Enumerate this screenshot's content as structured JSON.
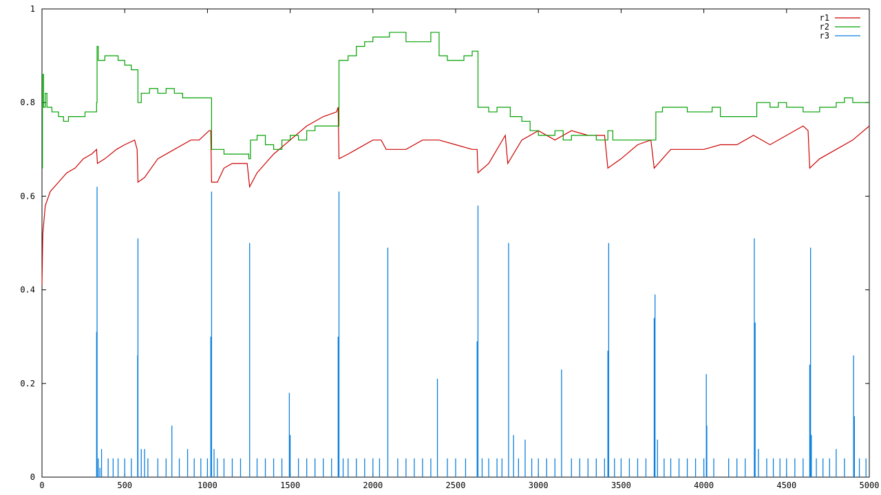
{
  "chart_data": {
    "type": "line",
    "title": "",
    "xlabel": "",
    "ylabel": "",
    "xlim": [
      0,
      5000
    ],
    "ylim": [
      0,
      1
    ],
    "x_ticks": [
      0,
      500,
      1000,
      1500,
      2000,
      2500,
      3000,
      3500,
      4000,
      4500,
      5000
    ],
    "x_tick_labels": [
      "0",
      "500",
      "1000",
      "1500",
      "2000",
      "2500",
      "3000",
      "3500",
      "4000",
      "4500",
      "5000"
    ],
    "y_ticks": [
      0,
      0.2,
      0.4,
      0.6,
      0.8,
      1
    ],
    "y_tick_labels": [
      "0",
      "0.2",
      "0.4",
      "0.6",
      "0.8",
      "1"
    ],
    "grid": false,
    "legend_position": "top-right",
    "series": [
      {
        "name": "r1",
        "color": "#cc0000",
        "style": "line",
        "points": [
          [
            0,
            0.41
          ],
          [
            5,
            0.52
          ],
          [
            20,
            0.58
          ],
          [
            50,
            0.61
          ],
          [
            100,
            0.63
          ],
          [
            150,
            0.65
          ],
          [
            200,
            0.66
          ],
          [
            250,
            0.68
          ],
          [
            300,
            0.69
          ],
          [
            330,
            0.7
          ],
          [
            335,
            0.67
          ],
          [
            380,
            0.68
          ],
          [
            450,
            0.7
          ],
          [
            500,
            0.71
          ],
          [
            560,
            0.72
          ],
          [
            575,
            0.7
          ],
          [
            580,
            0.63
          ],
          [
            620,
            0.64
          ],
          [
            700,
            0.68
          ],
          [
            800,
            0.7
          ],
          [
            900,
            0.72
          ],
          [
            950,
            0.72
          ],
          [
            1010,
            0.74
          ],
          [
            1020,
            0.74
          ],
          [
            1025,
            0.63
          ],
          [
            1060,
            0.63
          ],
          [
            1100,
            0.66
          ],
          [
            1150,
            0.67
          ],
          [
            1200,
            0.67
          ],
          [
            1240,
            0.67
          ],
          [
            1255,
            0.62
          ],
          [
            1300,
            0.65
          ],
          [
            1400,
            0.69
          ],
          [
            1500,
            0.72
          ],
          [
            1600,
            0.75
          ],
          [
            1700,
            0.77
          ],
          [
            1780,
            0.78
          ],
          [
            1790,
            0.79
          ],
          [
            1795,
            0.68
          ],
          [
            1850,
            0.69
          ],
          [
            1900,
            0.7
          ],
          [
            2000,
            0.72
          ],
          [
            2050,
            0.72
          ],
          [
            2080,
            0.7
          ],
          [
            2100,
            0.7
          ],
          [
            2200,
            0.7
          ],
          [
            2300,
            0.72
          ],
          [
            2400,
            0.72
          ],
          [
            2500,
            0.71
          ],
          [
            2600,
            0.7
          ],
          [
            2630,
            0.7
          ],
          [
            2635,
            0.65
          ],
          [
            2700,
            0.67
          ],
          [
            2750,
            0.7
          ],
          [
            2800,
            0.73
          ],
          [
            2815,
            0.67
          ],
          [
            2900,
            0.72
          ],
          [
            3000,
            0.74
          ],
          [
            3100,
            0.72
          ],
          [
            3200,
            0.74
          ],
          [
            3300,
            0.73
          ],
          [
            3400,
            0.73
          ],
          [
            3420,
            0.66
          ],
          [
            3500,
            0.68
          ],
          [
            3600,
            0.71
          ],
          [
            3680,
            0.72
          ],
          [
            3700,
            0.66
          ],
          [
            3800,
            0.7
          ],
          [
            3900,
            0.7
          ],
          [
            4000,
            0.7
          ],
          [
            4100,
            0.71
          ],
          [
            4200,
            0.71
          ],
          [
            4300,
            0.73
          ],
          [
            4400,
            0.71
          ],
          [
            4500,
            0.73
          ],
          [
            4600,
            0.75
          ],
          [
            4630,
            0.74
          ],
          [
            4640,
            0.66
          ],
          [
            4700,
            0.68
          ],
          [
            4800,
            0.7
          ],
          [
            4900,
            0.72
          ],
          [
            5000,
            0.75
          ]
        ]
      },
      {
        "name": "r2",
        "color": "#00a000",
        "style": "step",
        "points": [
          [
            0,
            0.66
          ],
          [
            3,
            0.86
          ],
          [
            10,
            0.79
          ],
          [
            20,
            0.82
          ],
          [
            30,
            0.79
          ],
          [
            60,
            0.78
          ],
          [
            100,
            0.77
          ],
          [
            130,
            0.76
          ],
          [
            160,
            0.77
          ],
          [
            200,
            0.77
          ],
          [
            260,
            0.78
          ],
          [
            330,
            0.8
          ],
          [
            333,
            0.92
          ],
          [
            340,
            0.89
          ],
          [
            380,
            0.9
          ],
          [
            420,
            0.9
          ],
          [
            460,
            0.89
          ],
          [
            500,
            0.88
          ],
          [
            540,
            0.87
          ],
          [
            575,
            0.87
          ],
          [
            580,
            0.8
          ],
          [
            600,
            0.82
          ],
          [
            650,
            0.83
          ],
          [
            700,
            0.82
          ],
          [
            750,
            0.83
          ],
          [
            800,
            0.82
          ],
          [
            850,
            0.81
          ],
          [
            900,
            0.81
          ],
          [
            1000,
            0.81
          ],
          [
            1020,
            0.81
          ],
          [
            1025,
            0.7
          ],
          [
            1050,
            0.7
          ],
          [
            1100,
            0.69
          ],
          [
            1150,
            0.69
          ],
          [
            1200,
            0.69
          ],
          [
            1250,
            0.68
          ],
          [
            1260,
            0.72
          ],
          [
            1300,
            0.73
          ],
          [
            1350,
            0.71
          ],
          [
            1400,
            0.7
          ],
          [
            1450,
            0.72
          ],
          [
            1500,
            0.73
          ],
          [
            1550,
            0.72
          ],
          [
            1600,
            0.74
          ],
          [
            1650,
            0.75
          ],
          [
            1700,
            0.75
          ],
          [
            1790,
            0.75
          ],
          [
            1795,
            0.89
          ],
          [
            1850,
            0.9
          ],
          [
            1900,
            0.92
          ],
          [
            1950,
            0.93
          ],
          [
            2000,
            0.94
          ],
          [
            2050,
            0.94
          ],
          [
            2100,
            0.95
          ],
          [
            2150,
            0.95
          ],
          [
            2200,
            0.93
          ],
          [
            2250,
            0.93
          ],
          [
            2300,
            0.93
          ],
          [
            2350,
            0.95
          ],
          [
            2400,
            0.9
          ],
          [
            2450,
            0.89
          ],
          [
            2500,
            0.89
          ],
          [
            2550,
            0.9
          ],
          [
            2600,
            0.91
          ],
          [
            2630,
            0.91
          ],
          [
            2635,
            0.79
          ],
          [
            2700,
            0.78
          ],
          [
            2750,
            0.79
          ],
          [
            2800,
            0.79
          ],
          [
            2830,
            0.77
          ],
          [
            2900,
            0.76
          ],
          [
            2950,
            0.74
          ],
          [
            3000,
            0.73
          ],
          [
            3050,
            0.73
          ],
          [
            3100,
            0.74
          ],
          [
            3150,
            0.72
          ],
          [
            3200,
            0.73
          ],
          [
            3300,
            0.73
          ],
          [
            3350,
            0.72
          ],
          [
            3420,
            0.74
          ],
          [
            3450,
            0.72
          ],
          [
            3500,
            0.72
          ],
          [
            3550,
            0.72
          ],
          [
            3600,
            0.72
          ],
          [
            3650,
            0.72
          ],
          [
            3700,
            0.72
          ],
          [
            3710,
            0.78
          ],
          [
            3750,
            0.79
          ],
          [
            3800,
            0.79
          ],
          [
            3850,
            0.79
          ],
          [
            3900,
            0.78
          ],
          [
            3950,
            0.78
          ],
          [
            4000,
            0.78
          ],
          [
            4050,
            0.79
          ],
          [
            4100,
            0.77
          ],
          [
            4200,
            0.77
          ],
          [
            4300,
            0.77
          ],
          [
            4320,
            0.8
          ],
          [
            4350,
            0.8
          ],
          [
            4400,
            0.79
          ],
          [
            4450,
            0.8
          ],
          [
            4500,
            0.79
          ],
          [
            4600,
            0.78
          ],
          [
            4650,
            0.78
          ],
          [
            4700,
            0.79
          ],
          [
            4750,
            0.79
          ],
          [
            4800,
            0.8
          ],
          [
            4850,
            0.81
          ],
          [
            4900,
            0.8
          ],
          [
            4950,
            0.8
          ],
          [
            5000,
            0.8
          ]
        ]
      },
      {
        "name": "r3",
        "color": "#0a7fdd",
        "style": "impulses",
        "points": [
          [
            330,
            0.31
          ],
          [
            333,
            0.62
          ],
          [
            340,
            0.04
          ],
          [
            350,
            0.02
          ],
          [
            360,
            0.06
          ],
          [
            400,
            0.04
          ],
          [
            430,
            0.04
          ],
          [
            460,
            0.04
          ],
          [
            500,
            0.04
          ],
          [
            540,
            0.04
          ],
          [
            578,
            0.26
          ],
          [
            580,
            0.51
          ],
          [
            600,
            0.06
          ],
          [
            620,
            0.06
          ],
          [
            640,
            0.04
          ],
          [
            700,
            0.04
          ],
          [
            750,
            0.04
          ],
          [
            785,
            0.11
          ],
          [
            830,
            0.04
          ],
          [
            880,
            0.06
          ],
          [
            920,
            0.04
          ],
          [
            960,
            0.04
          ],
          [
            1000,
            0.04
          ],
          [
            1020,
            0.3
          ],
          [
            1025,
            0.61
          ],
          [
            1040,
            0.06
          ],
          [
            1060,
            0.04
          ],
          [
            1100,
            0.04
          ],
          [
            1150,
            0.04
          ],
          [
            1200,
            0.04
          ],
          [
            1255,
            0.5
          ],
          [
            1300,
            0.04
          ],
          [
            1350,
            0.04
          ],
          [
            1400,
            0.04
          ],
          [
            1450,
            0.04
          ],
          [
            1495,
            0.18
          ],
          [
            1500,
            0.09
          ],
          [
            1550,
            0.04
          ],
          [
            1600,
            0.04
          ],
          [
            1650,
            0.04
          ],
          [
            1700,
            0.04
          ],
          [
            1750,
            0.04
          ],
          [
            1790,
            0.3
          ],
          [
            1795,
            0.61
          ],
          [
            1820,
            0.04
          ],
          [
            1850,
            0.04
          ],
          [
            1900,
            0.04
          ],
          [
            1950,
            0.04
          ],
          [
            2000,
            0.04
          ],
          [
            2040,
            0.04
          ],
          [
            2090,
            0.49
          ],
          [
            2150,
            0.04
          ],
          [
            2200,
            0.04
          ],
          [
            2250,
            0.04
          ],
          [
            2300,
            0.04
          ],
          [
            2350,
            0.04
          ],
          [
            2390,
            0.21
          ],
          [
            2450,
            0.04
          ],
          [
            2500,
            0.04
          ],
          [
            2560,
            0.04
          ],
          [
            2630,
            0.29
          ],
          [
            2635,
            0.58
          ],
          [
            2660,
            0.04
          ],
          [
            2700,
            0.04
          ],
          [
            2750,
            0.04
          ],
          [
            2780,
            0.04
          ],
          [
            2820,
            0.5
          ],
          [
            2850,
            0.09
          ],
          [
            2880,
            0.04
          ],
          [
            2920,
            0.08
          ],
          [
            2960,
            0.04
          ],
          [
            3000,
            0.04
          ],
          [
            3050,
            0.04
          ],
          [
            3100,
            0.04
          ],
          [
            3140,
            0.23
          ],
          [
            3200,
            0.04
          ],
          [
            3250,
            0.04
          ],
          [
            3300,
            0.04
          ],
          [
            3350,
            0.04
          ],
          [
            3400,
            0.04
          ],
          [
            3420,
            0.27
          ],
          [
            3425,
            0.5
          ],
          [
            3460,
            0.04
          ],
          [
            3500,
            0.04
          ],
          [
            3550,
            0.04
          ],
          [
            3600,
            0.04
          ],
          [
            3650,
            0.04
          ],
          [
            3700,
            0.34
          ],
          [
            3705,
            0.39
          ],
          [
            3720,
            0.08
          ],
          [
            3760,
            0.04
          ],
          [
            3800,
            0.04
          ],
          [
            3850,
            0.04
          ],
          [
            3900,
            0.04
          ],
          [
            3950,
            0.04
          ],
          [
            4000,
            0.04
          ],
          [
            4015,
            0.22
          ],
          [
            4018,
            0.11
          ],
          [
            4060,
            0.04
          ],
          [
            4150,
            0.04
          ],
          [
            4200,
            0.04
          ],
          [
            4250,
            0.04
          ],
          [
            4305,
            0.51
          ],
          [
            4310,
            0.33
          ],
          [
            4330,
            0.06
          ],
          [
            4380,
            0.04
          ],
          [
            4420,
            0.04
          ],
          [
            4460,
            0.04
          ],
          [
            4500,
            0.04
          ],
          [
            4550,
            0.04
          ],
          [
            4600,
            0.04
          ],
          [
            4640,
            0.24
          ],
          [
            4645,
            0.49
          ],
          [
            4650,
            0.09
          ],
          [
            4680,
            0.04
          ],
          [
            4720,
            0.04
          ],
          [
            4760,
            0.04
          ],
          [
            4800,
            0.06
          ],
          [
            4850,
            0.04
          ],
          [
            4905,
            0.26
          ],
          [
            4910,
            0.13
          ],
          [
            4940,
            0.04
          ],
          [
            4980,
            0.04
          ]
        ]
      }
    ]
  }
}
